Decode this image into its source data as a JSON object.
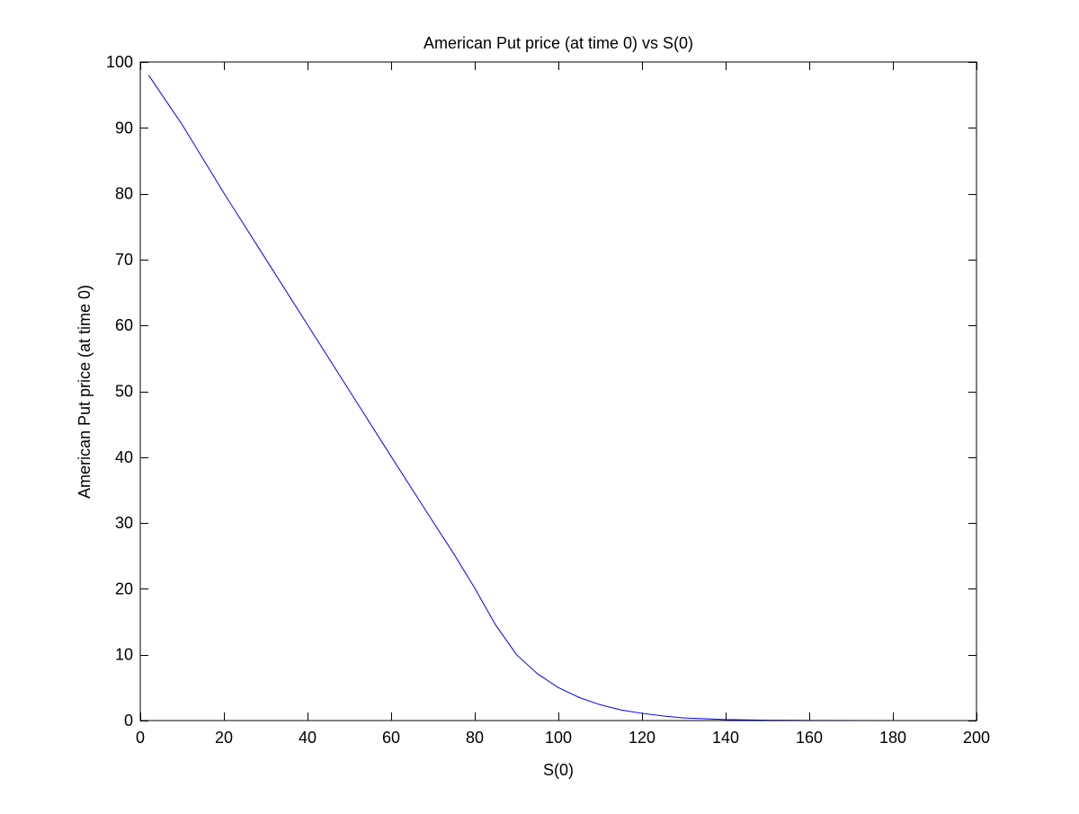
{
  "chart_data": {
    "type": "line",
    "title": "American Put price (at time 0) vs S(0)",
    "xlabel": "S(0)",
    "ylabel": "American Put price (at time 0)",
    "xlim": [
      0,
      200
    ],
    "ylim": [
      0,
      100
    ],
    "xticks": [
      0,
      20,
      40,
      60,
      80,
      100,
      120,
      140,
      160,
      180,
      200
    ],
    "yticks": [
      0,
      10,
      20,
      30,
      40,
      50,
      60,
      70,
      80,
      90,
      100
    ],
    "grid": false,
    "colors": {
      "line": "#0000ff",
      "axes": "#000000",
      "background": "#ffffff"
    },
    "series": [
      {
        "x": [
          2,
          10,
          20,
          30,
          40,
          50,
          60,
          70,
          75,
          80,
          85,
          90,
          95,
          100,
          105,
          110,
          115,
          120,
          125,
          130,
          140,
          150,
          160,
          180,
          200
        ],
        "values": [
          98.0,
          90.5,
          80.1,
          70.1,
          60.1,
          50.1,
          40.1,
          30.2,
          25.3,
          20.1,
          14.5,
          10.0,
          7.1,
          5.0,
          3.5,
          2.4,
          1.6,
          1.1,
          0.7,
          0.4,
          0.15,
          0.05,
          0.02,
          0.0,
          0.0
        ]
      }
    ]
  }
}
